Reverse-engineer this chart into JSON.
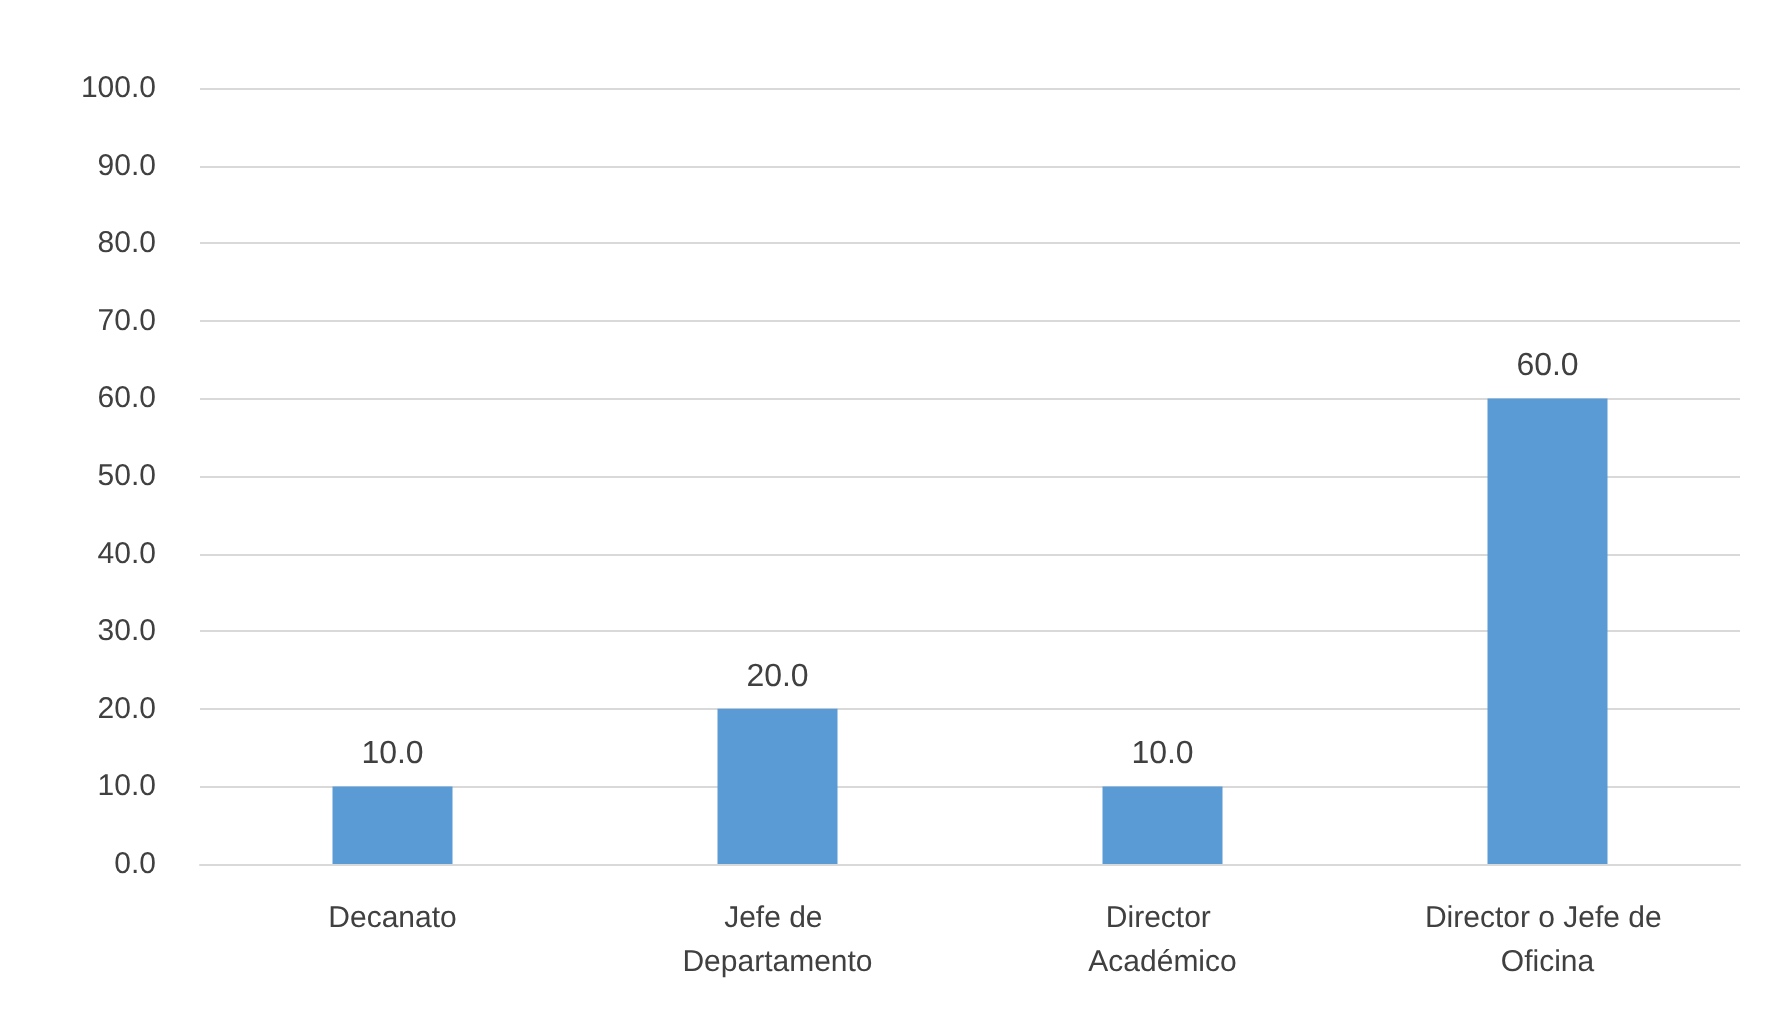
{
  "chart_data": {
    "type": "bar",
    "categories": [
      "Decanato",
      "Jefe de Departamento",
      "Director Académico",
      "Director o Jefe de Oficina"
    ],
    "values": [
      10,
      20,
      10,
      60
    ],
    "color": "#5b9bd5",
    "value_labels": [
      "10.0",
      "20.0",
      "10.0",
      "60.0"
    ],
    "ylim": [
      0,
      100
    ],
    "yticks": [
      {
        "value": 0,
        "label": "0.0"
      },
      {
        "value": 10,
        "label": "10.0"
      },
      {
        "value": 20,
        "label": "20.0"
      },
      {
        "value": 30,
        "label": "30.0"
      },
      {
        "value": 40,
        "label": "40.0"
      },
      {
        "value": 50,
        "label": "50.0"
      },
      {
        "value": 60,
        "label": "60.0"
      },
      {
        "value": 70,
        "label": "70.0"
      },
      {
        "value": 80,
        "label": "80.0"
      },
      {
        "value": 90,
        "label": "90.0"
      },
      {
        "value": 100,
        "label": "100.0"
      }
    ],
    "grid": "y"
  }
}
